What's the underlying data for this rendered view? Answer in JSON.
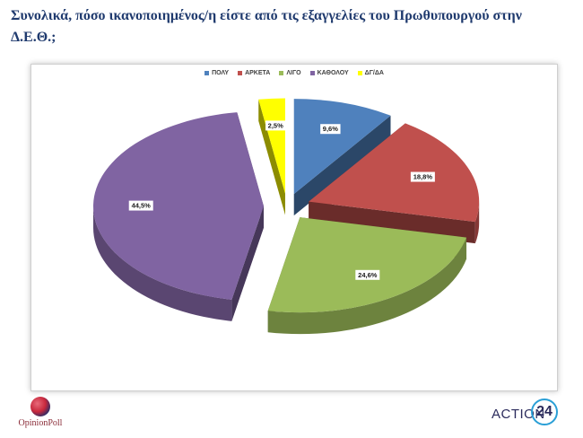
{
  "title": "Συνολικά, πόσο ικανοποιημένος/η είστε από τις εξαγγελίες του Πρωθυπουργού στην Δ.Ε.Θ.;",
  "chart_data": {
    "type": "pie",
    "categories": [
      "ΠΟΛΥ",
      "ΑΡΚΕΤΑ",
      "ΛΙΓΟ",
      "ΚΑΘΟΛΟΥ",
      "ΔΓ/ΔΑ"
    ],
    "values": [
      9.6,
      18.8,
      24.6,
      44.5,
      2.5
    ],
    "labels": [
      "9,6%",
      "18,8%",
      "24,6%",
      "44,5%",
      "2,5%"
    ],
    "colors": [
      "#4f81bd",
      "#c0504d",
      "#9bbb59",
      "#8064a2",
      "#ffff00"
    ],
    "legend": "top",
    "style": "3d-exploded"
  },
  "logos": {
    "left": "OpinionPoll",
    "right_text": "ACTION",
    "right_number": "24"
  }
}
